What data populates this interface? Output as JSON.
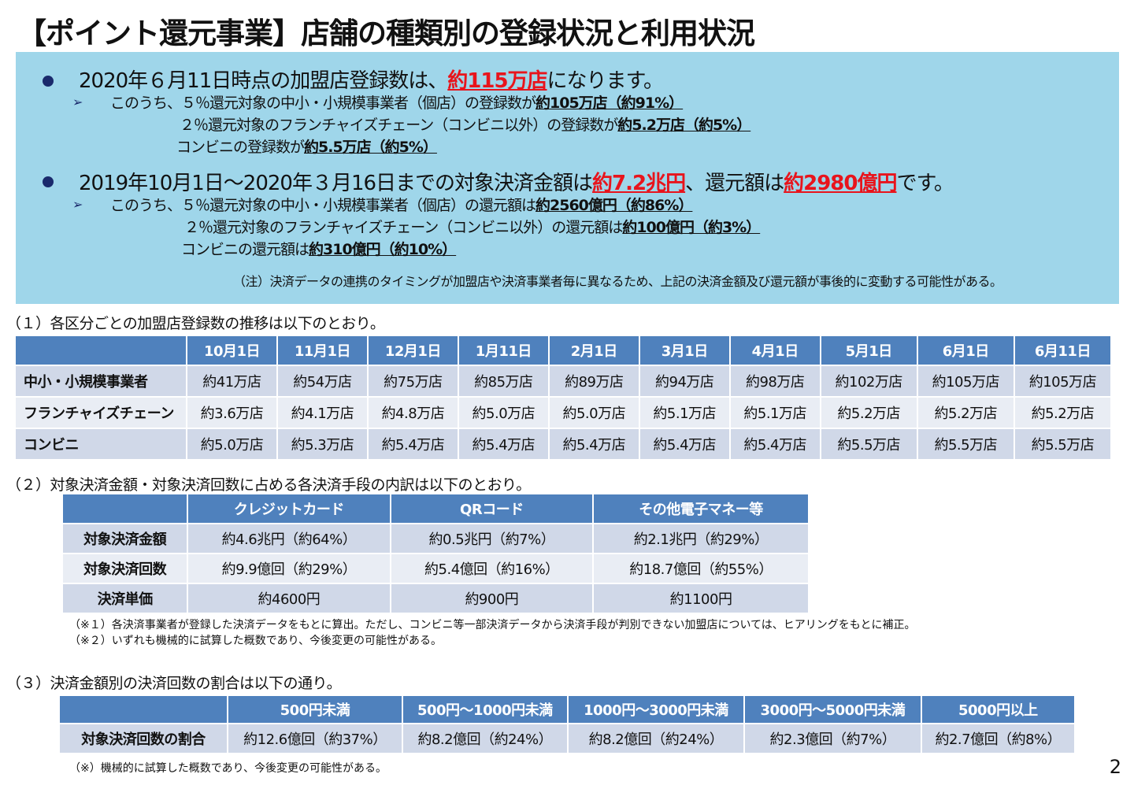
{
  "title": "【ポイント還元事業】店舗の種類別の登録状況と利用状況",
  "summary": {
    "bullet1": [
      {
        "t": "2020年６月11日時点の加盟店登録数は、",
        "s": ""
      },
      {
        "t": "約115万店",
        "s": "red"
      },
      {
        "t": "になります。",
        "s": ""
      }
    ],
    "bullet1_sub": [
      [
        {
          "t": "このうち、５％還元対象の中小・小規模事業者（個店）の登録数が",
          "s": ""
        },
        {
          "t": "約105万店（約91%）",
          "s": "bu"
        }
      ],
      [
        {
          "t": "２％還元対象のフランチャイズチェーン（コンビニ以外）の登録数が",
          "s": ""
        },
        {
          "t": "約5.2万店（約5%）",
          "s": "bu"
        }
      ],
      [
        {
          "t": "コンビニの登録数が",
          "s": ""
        },
        {
          "t": "約5.5万店（約5%）",
          "s": "bu"
        }
      ]
    ],
    "bullet2": [
      {
        "t": "2019年10月1日～2020年３月16日までの対象決済金額は",
        "s": ""
      },
      {
        "t": "約7.2兆円",
        "s": "red"
      },
      {
        "t": "、還元額は",
        "s": ""
      },
      {
        "t": "約2980億円",
        "s": "red"
      },
      {
        "t": "です。",
        "s": ""
      }
    ],
    "bullet2_sub": [
      [
        {
          "t": "このうち、５％還元対象の中小・小規模事業者（個店）の還元額は",
          "s": ""
        },
        {
          "t": "約2560億円（約86%）",
          "s": "bu"
        }
      ],
      [
        {
          "t": "２％還元対象のフランチャイズチェーン（コンビニ以外）の還元額は",
          "s": ""
        },
        {
          "t": "約100億円（約3%）",
          "s": "bu"
        }
      ],
      [
        {
          "t": "コンビニの還元額は",
          "s": ""
        },
        {
          "t": "約310億円（約10%）",
          "s": "bu"
        }
      ]
    ],
    "note": "（注）決済データの連携のタイミングが加盟店や決済事業者毎に異なるため、上記の決済金額及び還元額が事後的に変動する可能性がある。"
  },
  "section1": {
    "heading": "（１）各区分ごとの加盟店登録数の推移は以下のとおり。",
    "columns": [
      "",
      "10月1日",
      "11月1日",
      "12月1日",
      "1月11日",
      "2月1日",
      "3月1日",
      "4月1日",
      "5月1日",
      "6月1日",
      "6月11日"
    ],
    "rows": [
      [
        "中小・小規模事業者",
        "約41万店",
        "約54万店",
        "約75万店",
        "約85万店",
        "約89万店",
        "約94万店",
        "約98万店",
        "約102万店",
        "約105万店",
        "約105万店"
      ],
      [
        "フランチャイズチェーン",
        "約3.6万店",
        "約4.1万店",
        "約4.8万店",
        "約5.0万店",
        "約5.0万店",
        "約5.1万店",
        "約5.1万店",
        "約5.2万店",
        "約5.2万店",
        "約5.2万店"
      ],
      [
        "コンビニ",
        "約5.0万店",
        "約5.3万店",
        "約5.4万店",
        "約5.4万店",
        "約5.4万店",
        "約5.4万店",
        "約5.4万店",
        "約5.5万店",
        "約5.5万店",
        "約5.5万店"
      ]
    ]
  },
  "section2": {
    "heading": "（２）対象決済金額・対象決済回数に占める各決済手段の内訳は以下のとおり。",
    "columns": [
      "",
      "クレジットカード",
      "QRコード",
      "その他電子マネー等"
    ],
    "rows": [
      [
        "対象決済金額",
        "約4.6兆円（約64%）",
        "約0.5兆円（約7%）",
        "約2.1兆円（約29%）"
      ],
      [
        "対象決済回数",
        "約9.9億回（約29%）",
        "約5.4億回（約16%）",
        "約18.7億回（約55%）"
      ],
      [
        "決済単価",
        "約4600円",
        "約900円",
        "約1100円"
      ]
    ],
    "notes": [
      "（※１）各決済事業者が登録した決済データをもとに算出。ただし、コンビニ等一部決済データから決済手段が判別できない加盟店については、ヒアリングをもとに補正。",
      "（※２）いずれも機械的に試算した概数であり、今後変更の可能性がある。"
    ]
  },
  "section3": {
    "heading": "（３）決済金額別の決済回数の割合は以下の通り。",
    "columns": [
      "",
      "500円未満",
      "500円～1000円未満",
      "1000円～3000円未満",
      "3000円～5000円未満",
      "5000円以上"
    ],
    "rows": [
      [
        "対象決済回数の割合",
        "約12.6億回（約37%）",
        "約8.2億回（約24%）",
        "約8.2億回（約24%）",
        "約2.3億回（約7%）",
        "約2.7億回（約8%）"
      ]
    ],
    "note": "（※）機械的に試算した概数であり、今後変更の可能性がある。"
  },
  "page_number": "2",
  "colors": {
    "box": "#9fd6ea",
    "header": "#4f81bd",
    "row_dark": "#d0d8e8",
    "row_light": "#e9edf4",
    "highlight": "#e8141c"
  }
}
